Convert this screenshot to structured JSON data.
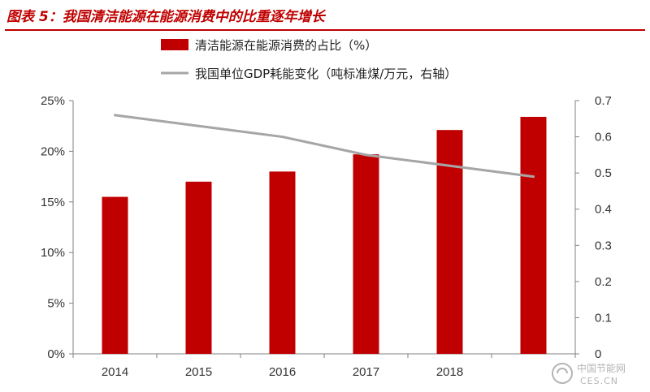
{
  "figure": {
    "title": "图表 5：我国清洁能源在能源消费中的比重逐年增长"
  },
  "colors": {
    "title_red": "#c00000",
    "bar": "#c00000",
    "line": "#a6a6a6",
    "axis": "#808080",
    "watermark": "#b5b5b5"
  },
  "watermark": {
    "name": "中国节能网",
    "domain": "CES.CN"
  },
  "chart_data": {
    "type": "bar",
    "categories": [
      "2014",
      "2015",
      "2016",
      "2017",
      "2018",
      ""
    ],
    "series": [
      {
        "name": "清洁能源在能源消费的占比（%）",
        "type": "bar",
        "axis": "left",
        "values": [
          15.5,
          17.0,
          18.0,
          19.7,
          22.1,
          23.4
        ]
      },
      {
        "name": "我国单位GDP耗能变化（吨标准煤/万元，右轴）",
        "type": "line",
        "axis": "right",
        "values": [
          0.66,
          0.63,
          0.6,
          0.55,
          0.52,
          0.49
        ]
      }
    ],
    "y_left": {
      "ticks": [
        "0%",
        "5%",
        "10%",
        "15%",
        "20%",
        "25%"
      ],
      "ylim": [
        0,
        25
      ]
    },
    "y_right": {
      "ticks": [
        "0",
        "0.1",
        "0.2",
        "0.3",
        "0.4",
        "0.5",
        "0.6",
        "0.7"
      ],
      "ylim": [
        0,
        0.7
      ]
    },
    "legend_position": "top",
    "grid": false
  }
}
